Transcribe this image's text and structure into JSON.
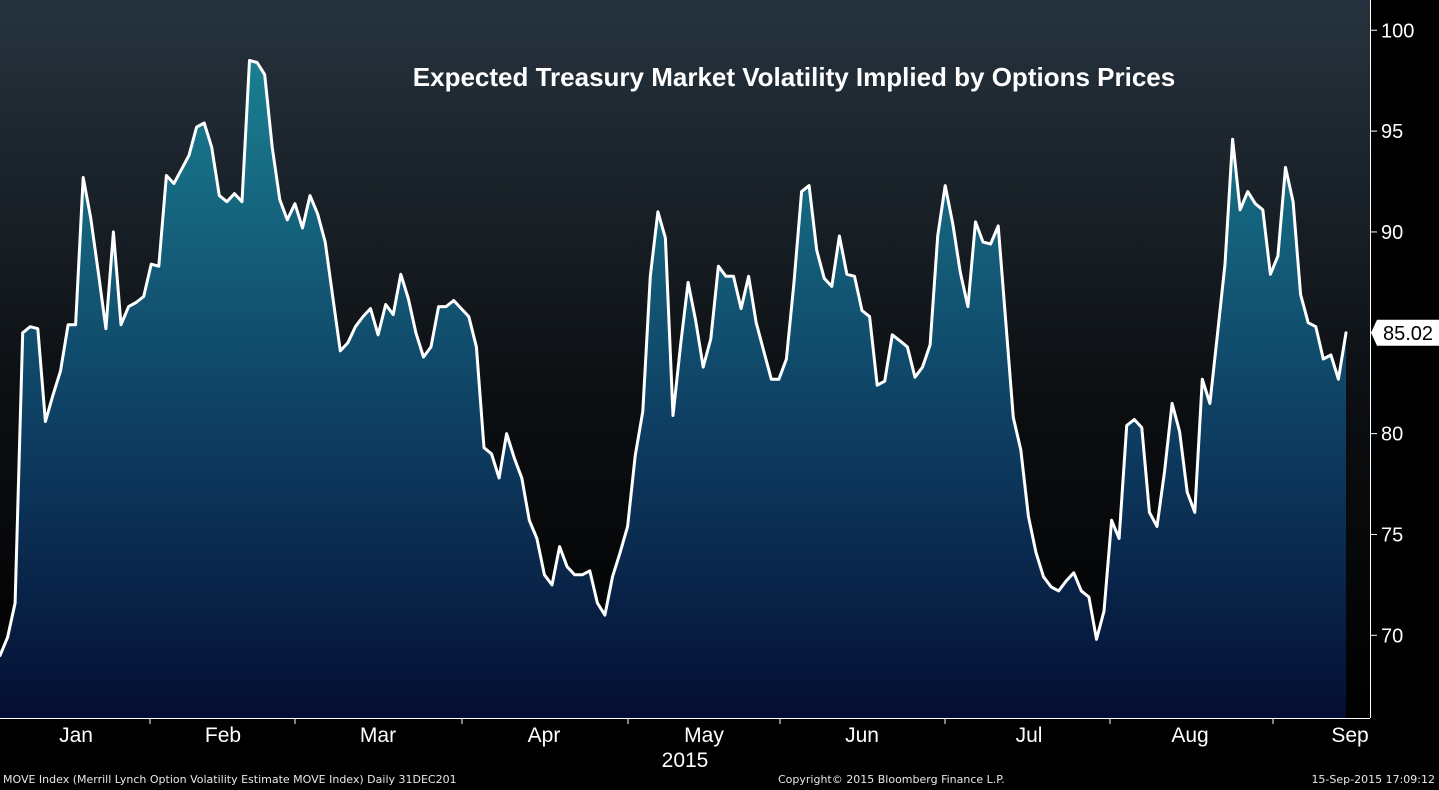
{
  "chart_data": {
    "type": "area",
    "title": "Expected Treasury Market Volatility Implied by Options Prices",
    "year_label": "2015",
    "x_ticks": [
      "Jan",
      "Feb",
      "Mar",
      "Apr",
      "May",
      "Jun",
      "Jul",
      "Aug",
      "Sep"
    ],
    "y_ticks": [
      70,
      75,
      80,
      85,
      90,
      95,
      100
    ],
    "ylim": [
      65.9,
      101.5
    ],
    "last_value_label": "85.02",
    "grid": false,
    "colors": {
      "line": "#ffffff",
      "area_top": "#1a7f91",
      "area_bottom": "#050e33",
      "bg_top": "#26333e",
      "bg_bottom": "#000000"
    },
    "series": [
      {
        "values": [
          69.0,
          69.9,
          71.6,
          85.0,
          85.3,
          85.2,
          80.6,
          81.9,
          83.1,
          85.4,
          85.4,
          92.7,
          90.7,
          88.0,
          85.2,
          90.0,
          85.4,
          86.3,
          86.5,
          86.8,
          88.4,
          88.3,
          92.8,
          92.4,
          93.1,
          93.8,
          95.2,
          95.4,
          94.2,
          91.8,
          91.5,
          91.9,
          91.5,
          98.5,
          98.4,
          97.8,
          94.2,
          91.6,
          90.6,
          91.4,
          90.2,
          91.8,
          90.9,
          89.5,
          86.8,
          84.1,
          84.5,
          85.3,
          85.8,
          86.2,
          84.9,
          86.4,
          85.9,
          87.9,
          86.7,
          85.0,
          83.8,
          84.3,
          86.3,
          86.3,
          86.6,
          86.2,
          85.8,
          84.3,
          79.3,
          79.0,
          77.8,
          80.0,
          78.8,
          77.8,
          75.7,
          74.8,
          73.0,
          72.5,
          74.4,
          73.4,
          73.0,
          73.0,
          73.2,
          71.6,
          71.0,
          72.9,
          74.1,
          75.4,
          78.9,
          81.1,
          87.8,
          91.0,
          89.7,
          80.9,
          84.4,
          87.5,
          85.6,
          83.3,
          84.7,
          88.3,
          87.8,
          87.8,
          86.2,
          87.8,
          85.5,
          84.1,
          82.7,
          82.7,
          83.7,
          87.5,
          92.0,
          92.3,
          89.1,
          87.7,
          87.3,
          89.8,
          87.9,
          87.8,
          86.1,
          85.8,
          82.4,
          82.6,
          84.9,
          84.6,
          84.3,
          82.8,
          83.3,
          84.4,
          89.8,
          92.3,
          90.4,
          88.0,
          86.3,
          90.5,
          89.5,
          89.4,
          90.3,
          85.6,
          80.8,
          79.2,
          75.9,
          74.1,
          72.9,
          72.4,
          72.2,
          72.7,
          73.1,
          72.2,
          71.9,
          69.8,
          71.2,
          75.7,
          74.8,
          80.4,
          80.7,
          80.3,
          76.1,
          75.4,
          78.1,
          81.5,
          80.1,
          77.1,
          76.1,
          82.7,
          81.5,
          84.9,
          88.4,
          94.6,
          91.1,
          92.0,
          91.4,
          91.1,
          87.9,
          88.8,
          93.2,
          91.5,
          86.9,
          85.5,
          85.3,
          83.7,
          83.9,
          82.7,
          85.0
        ]
      }
    ]
  },
  "footer": {
    "left": "MOVE Index (Merrill Lynch Option Volatility Estimate MOVE Index)  Daily 31DEC201",
    "center": "Copyright© 2015 Bloomberg Finance L.P.",
    "right": "15-Sep-2015 17:09:12"
  }
}
